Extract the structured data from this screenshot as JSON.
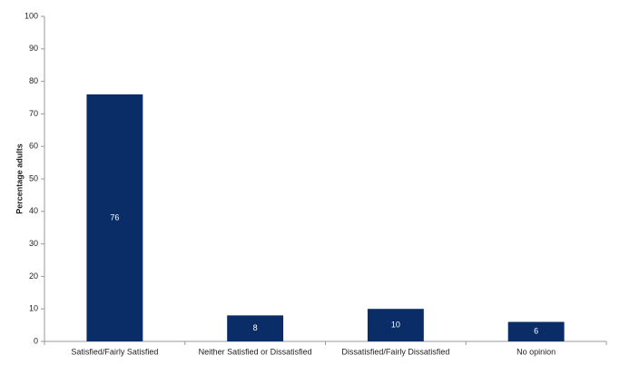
{
  "chart_data": {
    "type": "bar",
    "y_label": "Percentage adults",
    "categories": [
      "Satisfied/Fairly Satisfied",
      "Neither Satisfied or Dissatisfied",
      "Dissatisfied/Fairly Dissatisfied",
      "No opinion"
    ],
    "values": [
      76,
      8,
      10,
      6
    ],
    "color": "#0b2d67",
    "label_color": "#ffffff",
    "ylim": [
      0,
      100
    ],
    "yticks": [
      0,
      10,
      20,
      30,
      40,
      50,
      60,
      70,
      80,
      90,
      100
    ],
    "grid": false
  }
}
